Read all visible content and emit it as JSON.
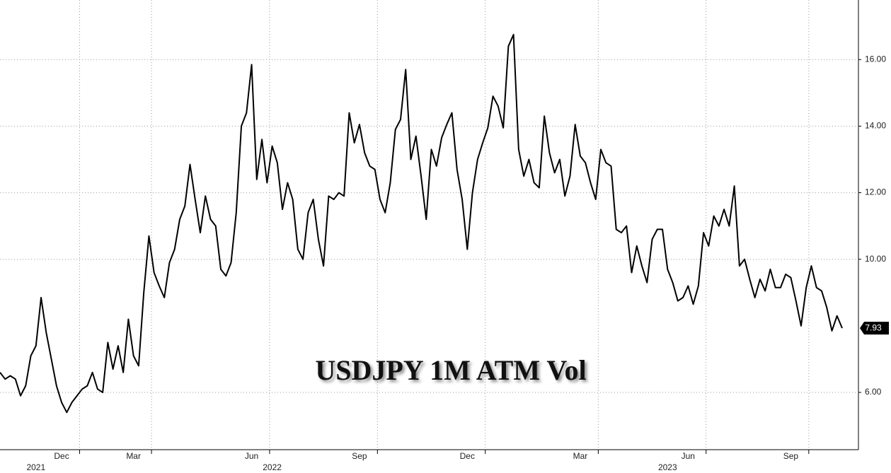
{
  "chart_data": {
    "type": "line",
    "title": "USDJPY 1M ATM Vol",
    "categories": [
      null,
      null,
      null,
      null,
      null,
      null,
      null,
      null,
      null,
      null,
      null,
      null,
      "Dec",
      null,
      null,
      null,
      null,
      null,
      null,
      null,
      null,
      null,
      null,
      null,
      null,
      null,
      "Mar",
      null,
      null,
      null,
      null,
      null,
      null,
      null,
      null,
      null,
      null,
      null,
      null,
      null,
      null,
      null,
      null,
      null,
      null,
      null,
      null,
      null,
      null,
      "Jun",
      null,
      null,
      null,
      null,
      null,
      null,
      null,
      null,
      null,
      null,
      null,
      null,
      null,
      null,
      null,
      null,
      null,
      null,
      null,
      null,
      "Sep",
      null,
      null,
      null,
      null,
      null,
      null,
      null,
      null,
      null,
      null,
      null,
      null,
      null,
      null,
      null,
      null,
      null,
      null,
      null,
      null,
      "Dec",
      null,
      null,
      null,
      null,
      null,
      null,
      null,
      null,
      null,
      null,
      null,
      null,
      null,
      null,
      null,
      null,
      null,
      null,
      null,
      null,
      null,
      "Mar",
      null,
      null,
      null,
      null,
      null,
      null,
      null,
      null,
      null,
      null,
      null,
      null,
      null,
      null,
      null,
      null,
      null,
      null,
      null,
      null,
      "Jun",
      null,
      null,
      null,
      null,
      null,
      null,
      null,
      null,
      null,
      null,
      null,
      null,
      null,
      null,
      null,
      null,
      null,
      null,
      null,
      "Sep",
      null,
      null,
      null,
      null,
      null,
      null,
      null,
      null,
      null,
      null
    ],
    "years": [
      null,
      null,
      null,
      null,
      null,
      null,
      null,
      "2021",
      null,
      null,
      null,
      null,
      null,
      null,
      null,
      null,
      null,
      null,
      null,
      null,
      null,
      null,
      null,
      null,
      null,
      null,
      null,
      null,
      null,
      null,
      null,
      null,
      null,
      null,
      null,
      null,
      null,
      null,
      null,
      null,
      null,
      null,
      null,
      null,
      null,
      null,
      null,
      null,
      null,
      null,
      null,
      null,
      null,
      "2022",
      null,
      null,
      null,
      null,
      null,
      null,
      null,
      null,
      null,
      null,
      null,
      null,
      null,
      null,
      null,
      null,
      null,
      null,
      null,
      null,
      null,
      null,
      null,
      null,
      null,
      null,
      null,
      null,
      null,
      null,
      null,
      null,
      null,
      null,
      null,
      null,
      null,
      null,
      null,
      null,
      null,
      null,
      null,
      null,
      null,
      null,
      null,
      null,
      null,
      null,
      null,
      null,
      null,
      null,
      null,
      null,
      null,
      null,
      null,
      null,
      null,
      null,
      null,
      null,
      null,
      null,
      null,
      null,
      null,
      null,
      null,
      null,
      null,
      null,
      null,
      null,
      "2023",
      null,
      null,
      null,
      null,
      null,
      null,
      null,
      null,
      null,
      null,
      null,
      null,
      null,
      null,
      null,
      null,
      null,
      null,
      null,
      null,
      null,
      null,
      null,
      null,
      null,
      null,
      null,
      null,
      null,
      null,
      null,
      null,
      null,
      null
    ],
    "series": [
      {
        "color": "#000000",
        "values": [
          6.6,
          6.4,
          6.5,
          6.4,
          5.9,
          6.2,
          7.1,
          7.4,
          8.85,
          7.8,
          7.0,
          6.2,
          5.7,
          5.4,
          5.7,
          5.9,
          6.1,
          6.2,
          6.6,
          6.1,
          6.0,
          7.5,
          6.7,
          7.4,
          6.6,
          8.2,
          7.1,
          6.8,
          9.0,
          10.7,
          9.6,
          9.2,
          8.85,
          9.9,
          10.3,
          11.2,
          11.6,
          12.85,
          11.8,
          10.8,
          11.9,
          11.2,
          11.0,
          9.7,
          9.5,
          9.9,
          11.4,
          14.0,
          14.4,
          15.85,
          12.4,
          13.6,
          12.3,
          13.4,
          12.9,
          11.5,
          12.3,
          11.8,
          10.3,
          10.0,
          11.4,
          11.8,
          10.6,
          9.8,
          11.9,
          11.8,
          12.0,
          11.9,
          14.4,
          13.5,
          14.05,
          13.2,
          12.8,
          12.7,
          11.8,
          11.4,
          12.3,
          13.9,
          14.2,
          15.7,
          13.0,
          13.7,
          12.5,
          11.2,
          13.3,
          12.8,
          13.65,
          14.05,
          14.4,
          12.7,
          11.8,
          10.3,
          12.0,
          13.0,
          13.5,
          13.95,
          14.9,
          14.6,
          13.95,
          16.4,
          16.75,
          13.3,
          12.5,
          13.0,
          12.3,
          12.15,
          14.3,
          13.2,
          12.6,
          13.0,
          11.9,
          12.5,
          14.05,
          13.1,
          12.9,
          12.3,
          11.8,
          13.3,
          12.9,
          12.8,
          10.9,
          10.8,
          11.0,
          9.6,
          10.4,
          9.8,
          9.3,
          10.6,
          10.9,
          10.9,
          9.7,
          9.3,
          8.75,
          8.85,
          9.2,
          8.65,
          9.2,
          10.8,
          10.4,
          11.3,
          11.0,
          11.5,
          11.0,
          12.2,
          9.8,
          10.0,
          9.4,
          8.85,
          9.4,
          9.05,
          9.7,
          9.15,
          9.15,
          9.55,
          9.45,
          8.75,
          8.0,
          9.15,
          9.8,
          9.15,
          9.05,
          8.55,
          7.85,
          8.3,
          7.93
        ]
      }
    ],
    "ylim": [
      4.28,
      17.79
    ],
    "yticks": [
      {
        "value": 6,
        "label": "6.00"
      },
      {
        "value": 10,
        "label": "10.00"
      },
      {
        "value": 12,
        "label": "12.00"
      },
      {
        "value": 14,
        "label": "14.00"
      },
      {
        "value": 16,
        "label": "16.00"
      }
    ],
    "grid": true
  }
}
